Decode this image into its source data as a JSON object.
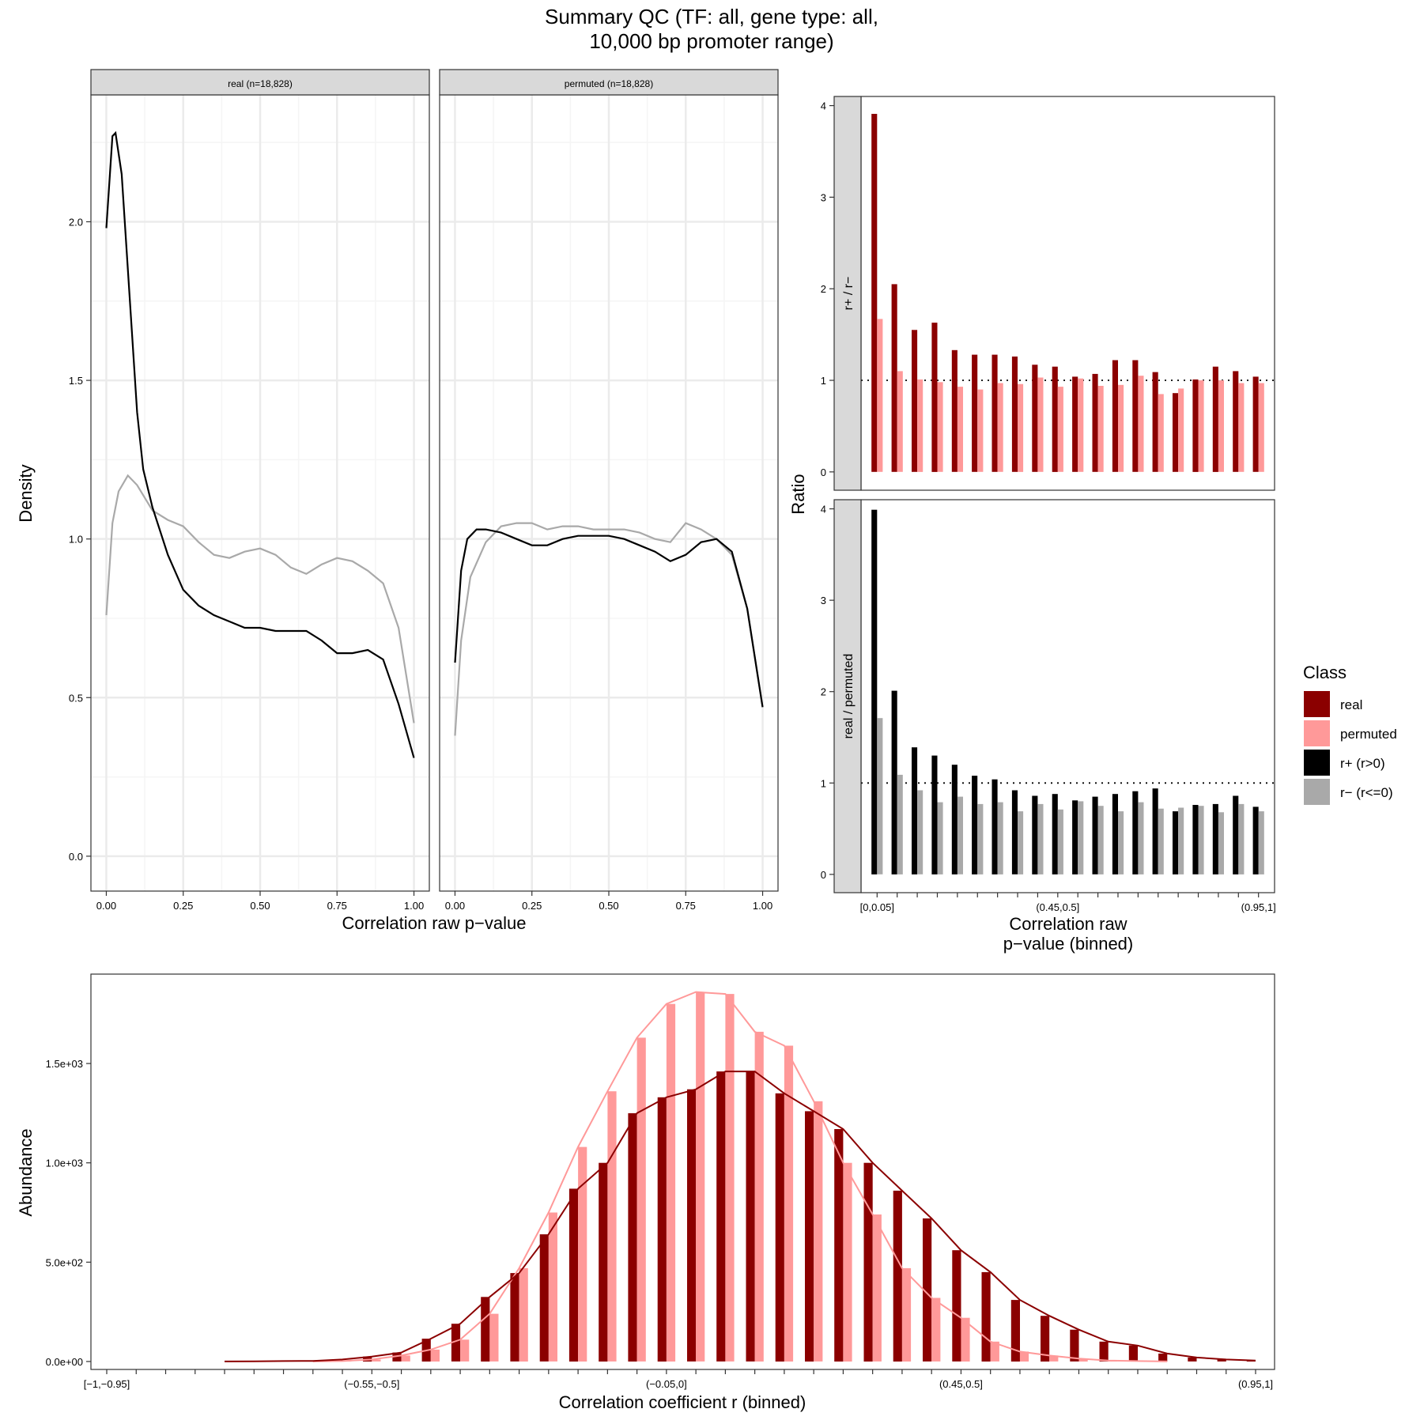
{
  "title_line1": "Summary QC (TF: all, gene type: all,",
  "title_line2": "10,000 bp promoter range)",
  "legend": {
    "title": "Class",
    "items": [
      {
        "label": "real",
        "color": "#8B0000"
      },
      {
        "label": "permuted",
        "color": "#FF9999"
      },
      {
        "label": "r+ (r>0)",
        "color": "#000000"
      },
      {
        "label": "r− (r<=0)",
        "color": "#A9A9A9"
      }
    ]
  },
  "chart_data": [
    {
      "type": "line",
      "id": "density",
      "xlabel": "Correlation raw p−value",
      "ylabel": "Density",
      "xlim": [
        -0.05,
        1.05
      ],
      "ylim": [
        -0.11,
        2.4
      ],
      "xticks": [
        "0.00",
        "0.25",
        "0.50",
        "0.75",
        "1.00"
      ],
      "yticks": [
        "0.0",
        "0.5",
        "1.0",
        "1.5",
        "2.0"
      ],
      "panels": [
        {
          "strip": "real (n=18,828)",
          "series": [
            {
              "color": "#000000",
              "x": [
                0,
                0.02,
                0.03,
                0.05,
                0.08,
                0.1,
                0.12,
                0.15,
                0.2,
                0.25,
                0.3,
                0.35,
                0.4,
                0.45,
                0.5,
                0.55,
                0.6,
                0.65,
                0.7,
                0.75,
                0.8,
                0.85,
                0.9,
                0.95,
                1.0
              ],
              "y": [
                1.98,
                2.27,
                2.28,
                2.15,
                1.7,
                1.4,
                1.22,
                1.1,
                0.95,
                0.84,
                0.79,
                0.76,
                0.74,
                0.72,
                0.72,
                0.71,
                0.71,
                0.71,
                0.68,
                0.64,
                0.64,
                0.65,
                0.62,
                0.48,
                0.31
              ]
            },
            {
              "color": "#A9A9A9",
              "x": [
                0,
                0.02,
                0.04,
                0.07,
                0.1,
                0.15,
                0.2,
                0.25,
                0.3,
                0.35,
                0.4,
                0.45,
                0.5,
                0.55,
                0.6,
                0.65,
                0.7,
                0.75,
                0.8,
                0.85,
                0.9,
                0.95,
                1.0
              ],
              "y": [
                0.76,
                1.05,
                1.15,
                1.2,
                1.17,
                1.09,
                1.06,
                1.04,
                0.99,
                0.95,
                0.94,
                0.96,
                0.97,
                0.95,
                0.91,
                0.89,
                0.92,
                0.94,
                0.93,
                0.9,
                0.86,
                0.72,
                0.42
              ]
            }
          ]
        },
        {
          "strip": "permuted (n=18,828)",
          "series": [
            {
              "color": "#000000",
              "x": [
                0,
                0.02,
                0.04,
                0.07,
                0.1,
                0.15,
                0.2,
                0.25,
                0.3,
                0.35,
                0.4,
                0.45,
                0.5,
                0.55,
                0.6,
                0.65,
                0.7,
                0.75,
                0.8,
                0.85,
                0.9,
                0.95,
                1.0
              ],
              "y": [
                0.61,
                0.9,
                1.0,
                1.03,
                1.03,
                1.02,
                1.0,
                0.98,
                0.98,
                1.0,
                1.01,
                1.01,
                1.01,
                1.0,
                0.98,
                0.96,
                0.93,
                0.95,
                0.99,
                1.0,
                0.96,
                0.78,
                0.47
              ]
            },
            {
              "color": "#A9A9A9",
              "x": [
                0,
                0.02,
                0.05,
                0.1,
                0.15,
                0.2,
                0.25,
                0.3,
                0.35,
                0.4,
                0.45,
                0.5,
                0.55,
                0.6,
                0.65,
                0.7,
                0.75,
                0.8,
                0.85,
                0.9,
                0.95,
                1.0
              ],
              "y": [
                0.38,
                0.68,
                0.88,
                0.99,
                1.04,
                1.05,
                1.05,
                1.03,
                1.04,
                1.04,
                1.03,
                1.03,
                1.03,
                1.02,
                1.0,
                0.99,
                1.05,
                1.03,
                1.0,
                0.95,
                0.78,
                0.47
              ]
            }
          ]
        }
      ]
    },
    {
      "type": "bar",
      "id": "ratios",
      "xlabel_line1": "Correlation raw",
      "xlabel_line2": "p−value (binned)",
      "ylabel": "Ratio",
      "bins": 20,
      "xtick_labels": [
        {
          "bin": 0,
          "text": "[0,0.05]"
        },
        {
          "bin": 9,
          "text": "(0.45,0.5]"
        },
        {
          "bin": 19,
          "text": "(0.95,1]"
        }
      ],
      "ylim": [
        -0.2,
        4.1
      ],
      "yticks": [
        "0",
        "1",
        "2",
        "3",
        "4"
      ],
      "reference_line": 1,
      "panels": [
        {
          "strip": "r+ / r−",
          "series": [
            {
              "name": "real",
              "color": "#8B0000",
              "values": [
                3.91,
                2.05,
                1.55,
                1.63,
                1.33,
                1.28,
                1.28,
                1.26,
                1.17,
                1.15,
                1.04,
                1.07,
                1.22,
                1.22,
                1.09,
                0.86,
                1.01,
                1.15,
                1.1,
                1.04
              ]
            },
            {
              "name": "permuted",
              "color": "#FF9999",
              "values": [
                1.67,
                1.1,
                1.01,
                0.98,
                0.93,
                0.9,
                0.97,
                0.96,
                1.03,
                0.93,
                1.02,
                0.94,
                0.95,
                1.05,
                0.85,
                0.91,
                1.0,
                1.0,
                0.97,
                0.97
              ]
            }
          ]
        },
        {
          "strip": "real / permuted",
          "series": [
            {
              "name": "r+ (r>0)",
              "color": "#000000",
              "values": [
                3.99,
                2.01,
                1.39,
                1.3,
                1.2,
                1.08,
                1.04,
                0.92,
                0.86,
                0.88,
                0.81,
                0.85,
                0.88,
                0.91,
                0.94,
                0.69,
                0.76,
                0.77,
                0.86,
                0.74
              ]
            },
            {
              "name": "r− (r<=0)",
              "color": "#A9A9A9",
              "values": [
                1.71,
                1.09,
                0.92,
                0.79,
                0.85,
                0.77,
                0.79,
                0.69,
                0.77,
                0.71,
                0.8,
                0.75,
                0.69,
                0.79,
                0.72,
                0.73,
                0.75,
                0.68,
                0.77,
                0.69
              ]
            }
          ]
        }
      ]
    },
    {
      "type": "bar",
      "id": "abundance",
      "xlabel": "Correlation coefficient r (binned)",
      "ylabel": "Abundance",
      "bins": 40,
      "xtick_labels": [
        {
          "bin": 0,
          "text": "[−1,−0.95]"
        },
        {
          "bin": 9,
          "text": "(−0.55,−0.5]"
        },
        {
          "bin": 19,
          "text": "(−0.05,0]"
        },
        {
          "bin": 29,
          "text": "(0.45,0.5]"
        },
        {
          "bin": 39,
          "text": "(0.95,1]"
        }
      ],
      "ylim": [
        -40,
        1950
      ],
      "yticks": [
        {
          "value": 0,
          "label": "0.0e+00"
        },
        {
          "value": 500,
          "label": "5.0e+02"
        },
        {
          "value": 1000,
          "label": "1.0e+03"
        },
        {
          "value": 1500,
          "label": "1.5e+03"
        }
      ],
      "series": [
        {
          "name": "real",
          "color": "#8B0000",
          "values": [
            0,
            0,
            0,
            0,
            0,
            1,
            2,
            3,
            10,
            25,
            45,
            115,
            190,
            325,
            445,
            640,
            870,
            1000,
            1250,
            1330,
            1370,
            1460,
            1460,
            1350,
            1260,
            1170,
            1000,
            860,
            720,
            560,
            450,
            310,
            230,
            160,
            100,
            80,
            40,
            20,
            10,
            5
          ]
        },
        {
          "name": "permuted",
          "color": "#FF9999",
          "values": [
            0,
            0,
            0,
            0,
            0,
            0,
            0,
            0,
            2,
            10,
            30,
            60,
            110,
            240,
            470,
            750,
            1080,
            1360,
            1630,
            1800,
            1860,
            1850,
            1660,
            1590,
            1310,
            1000,
            740,
            470,
            320,
            220,
            100,
            50,
            30,
            15,
            5,
            2,
            0,
            0,
            0,
            0
          ]
        }
      ]
    }
  ]
}
